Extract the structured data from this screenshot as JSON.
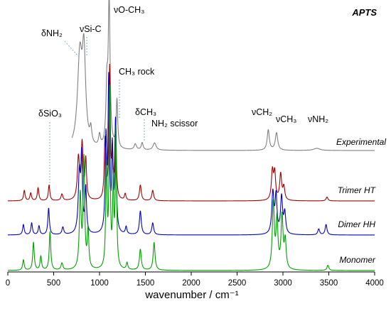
{
  "chart_data": {
    "type": "line",
    "title": "APTS",
    "xlabel": "wavenumber / cm⁻¹",
    "xlim": [
      0,
      4000
    ],
    "x_ticks": [
      0,
      500,
      1000,
      1500,
      2000,
      2500,
      3000,
      3500,
      4000
    ],
    "grid": false,
    "legend": "inline labels at right end of each trace",
    "series": [
      {
        "name": "Experimental",
        "color": "#808080",
        "x_range": [
          700,
          4000
        ],
        "peaks": [
          {
            "x": 785,
            "h": 0.62,
            "w": 30
          },
          {
            "x": 830,
            "h": 0.6,
            "w": 22
          },
          {
            "x": 905,
            "h": 0.1,
            "w": 12
          },
          {
            "x": 1000,
            "h": 0.08,
            "w": 12
          },
          {
            "x": 1080,
            "h": 0.38,
            "w": 12
          },
          {
            "x": 1105,
            "h": 1.0,
            "w": 12
          },
          {
            "x": 1190,
            "h": 0.33,
            "w": 10
          },
          {
            "x": 1390,
            "h": 0.04,
            "w": 15
          },
          {
            "x": 1465,
            "h": 0.05,
            "w": 12
          },
          {
            "x": 1600,
            "h": 0.05,
            "w": 20
          },
          {
            "x": 2840,
            "h": 0.14,
            "w": 14
          },
          {
            "x": 2930,
            "h": 0.12,
            "w": 16
          },
          {
            "x": 3370,
            "h": 0.015,
            "w": 40
          }
        ]
      },
      {
        "name": "Trimer HT",
        "color": "#a00000",
        "x_range": [
          0,
          4000
        ],
        "peaks": [
          {
            "x": 180,
            "h": 0.08,
            "w": 10
          },
          {
            "x": 250,
            "h": 0.06,
            "w": 10
          },
          {
            "x": 330,
            "h": 0.1,
            "w": 10
          },
          {
            "x": 450,
            "h": 0.12,
            "w": 10
          },
          {
            "x": 590,
            "h": 0.05,
            "w": 12
          },
          {
            "x": 770,
            "h": 0.32,
            "w": 14
          },
          {
            "x": 810,
            "h": 0.42,
            "w": 12
          },
          {
            "x": 850,
            "h": 0.3,
            "w": 10
          },
          {
            "x": 1060,
            "h": 0.46,
            "w": 10
          },
          {
            "x": 1110,
            "h": 1.0,
            "w": 9
          },
          {
            "x": 1140,
            "h": 0.32,
            "w": 8
          },
          {
            "x": 1175,
            "h": 0.6,
            "w": 9
          },
          {
            "x": 1280,
            "h": 0.05,
            "w": 10
          },
          {
            "x": 1445,
            "h": 0.12,
            "w": 12
          },
          {
            "x": 1580,
            "h": 0.08,
            "w": 12
          },
          {
            "x": 2885,
            "h": 0.22,
            "w": 13
          },
          {
            "x": 2910,
            "h": 0.2,
            "w": 12
          },
          {
            "x": 2975,
            "h": 0.2,
            "w": 13
          },
          {
            "x": 3010,
            "h": 0.1,
            "w": 12
          },
          {
            "x": 3480,
            "h": 0.03,
            "w": 12
          }
        ]
      },
      {
        "name": "Dimer HH",
        "color": "#0000cc",
        "x_range": [
          0,
          4000
        ],
        "peaks": [
          {
            "x": 170,
            "h": 0.07,
            "w": 10
          },
          {
            "x": 260,
            "h": 0.08,
            "w": 10
          },
          {
            "x": 340,
            "h": 0.06,
            "w": 10
          },
          {
            "x": 445,
            "h": 0.18,
            "w": 10
          },
          {
            "x": 600,
            "h": 0.05,
            "w": 12
          },
          {
            "x": 780,
            "h": 0.4,
            "w": 14
          },
          {
            "x": 805,
            "h": 0.48,
            "w": 10
          },
          {
            "x": 850,
            "h": 0.3,
            "w": 10
          },
          {
            "x": 1070,
            "h": 0.62,
            "w": 10
          },
          {
            "x": 1100,
            "h": 1.0,
            "w": 9
          },
          {
            "x": 1140,
            "h": 0.55,
            "w": 9
          },
          {
            "x": 1175,
            "h": 0.75,
            "w": 9
          },
          {
            "x": 1290,
            "h": 0.05,
            "w": 10
          },
          {
            "x": 1445,
            "h": 0.16,
            "w": 12
          },
          {
            "x": 1580,
            "h": 0.08,
            "w": 12
          },
          {
            "x": 2890,
            "h": 0.28,
            "w": 14
          },
          {
            "x": 2925,
            "h": 0.25,
            "w": 12
          },
          {
            "x": 2985,
            "h": 0.25,
            "w": 13
          },
          {
            "x": 3020,
            "h": 0.14,
            "w": 12
          },
          {
            "x": 3390,
            "h": 0.04,
            "w": 12
          },
          {
            "x": 3470,
            "h": 0.07,
            "w": 12
          }
        ]
      },
      {
        "name": "Monomer",
        "color": "#00a000",
        "x_range": [
          0,
          4000
        ],
        "peaks": [
          {
            "x": 170,
            "h": 0.06,
            "w": 10
          },
          {
            "x": 280,
            "h": 0.16,
            "w": 10
          },
          {
            "x": 360,
            "h": 0.08,
            "w": 10
          },
          {
            "x": 460,
            "h": 0.22,
            "w": 10
          },
          {
            "x": 590,
            "h": 0.04,
            "w": 12
          },
          {
            "x": 790,
            "h": 0.42,
            "w": 12
          },
          {
            "x": 830,
            "h": 0.62,
            "w": 10
          },
          {
            "x": 875,
            "h": 0.22,
            "w": 10
          },
          {
            "x": 1075,
            "h": 0.58,
            "w": 9
          },
          {
            "x": 1110,
            "h": 1.0,
            "w": 8
          },
          {
            "x": 1150,
            "h": 0.48,
            "w": 8
          },
          {
            "x": 1180,
            "h": 0.78,
            "w": 8
          },
          {
            "x": 1300,
            "h": 0.04,
            "w": 10
          },
          {
            "x": 1445,
            "h": 0.12,
            "w": 12
          },
          {
            "x": 1595,
            "h": 0.16,
            "w": 12
          },
          {
            "x": 2895,
            "h": 0.38,
            "w": 13
          },
          {
            "x": 2935,
            "h": 0.28,
            "w": 12
          },
          {
            "x": 2990,
            "h": 0.3,
            "w": 13
          },
          {
            "x": 3025,
            "h": 0.16,
            "w": 12
          },
          {
            "x": 3490,
            "h": 0.03,
            "w": 12
          }
        ]
      }
    ],
    "annotations": [
      {
        "text": "δNH₂",
        "line_x": [
          740,
          810
        ]
      },
      {
        "text": "νSi-C",
        "line_x": [
          840,
          840
        ]
      },
      {
        "text": "νO-CH₃",
        "line_x": null
      },
      {
        "text": "CH₃ rock",
        "line_x": [
          1210,
          1210
        ]
      },
      {
        "text": "δSiO₃",
        "line_x": [
          450,
          450
        ]
      },
      {
        "text": "δCH₃",
        "line_x": [
          1470,
          1470
        ]
      },
      {
        "text": "NH₂ scissor",
        "line_x": null
      },
      {
        "text": "νCH₂",
        "line_x": null
      },
      {
        "text": "νCH₃",
        "line_x": null
      },
      {
        "text": "νNH₂",
        "line_x": null
      }
    ]
  }
}
